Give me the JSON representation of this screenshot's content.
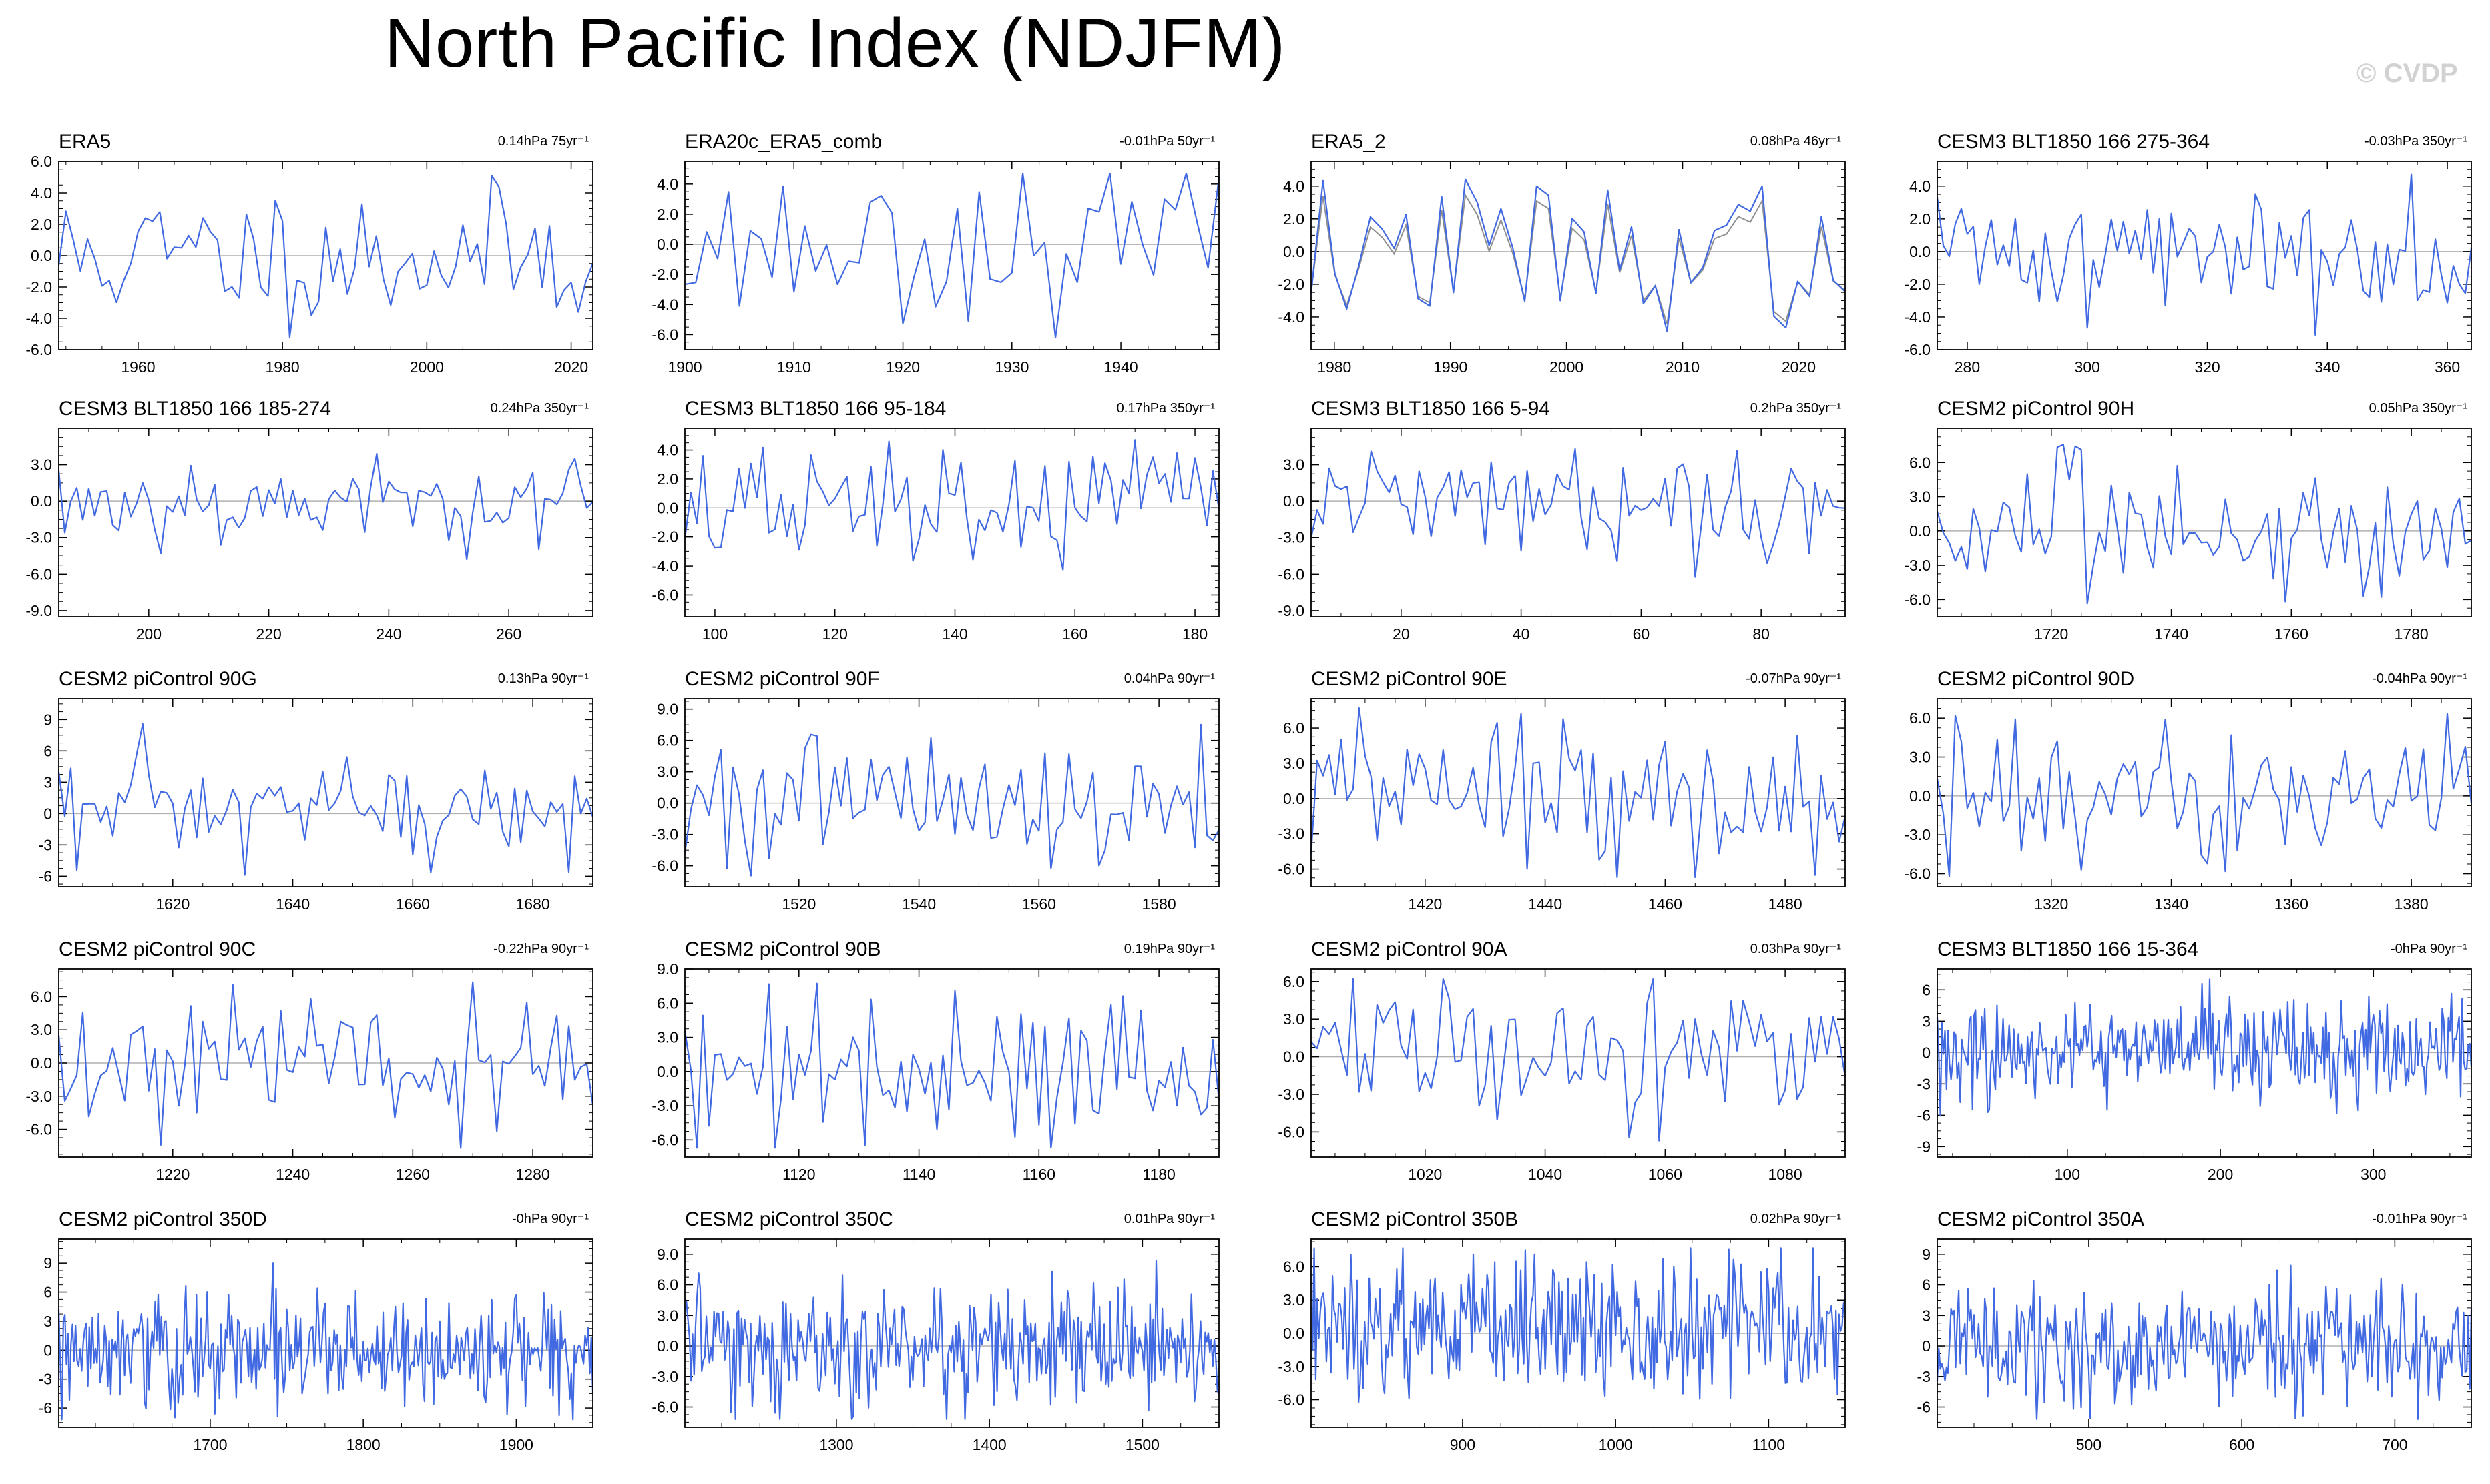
{
  "title": "North Pacific Index (NDJFM)",
  "watermark": "© CVDP",
  "colors": {
    "series_primary": "#4169e1",
    "series_secondary": "#909090",
    "zero_line": "#b0b0b0",
    "axis": "#000000"
  },
  "chart_data": [
    {
      "type": "line",
      "panel_label": "ERA5",
      "trend_label": "0.14hPa 75yr⁻¹",
      "xlim": [
        1949,
        2023
      ],
      "xticks": [
        1960,
        1980,
        2000,
        2020
      ],
      "ylim": [
        -6.0,
        6.0
      ],
      "yticks": [
        -6.0,
        -4.0,
        -2.0,
        0.0,
        2.0,
        4.0,
        6.0
      ],
      "ytick_decimals": 1,
      "n": 75,
      "amp": 2.2,
      "seed": 11,
      "series": [
        {
          "values": []
        }
      ]
    },
    {
      "type": "line",
      "panel_label": "ERA20c_ERA5_comb",
      "trend_label": "-0.01hPa 50yr⁻¹",
      "xlim": [
        1900,
        1949
      ],
      "xticks": [
        1900,
        1910,
        1920,
        1930,
        1940
      ],
      "ylim": [
        -7.0,
        5.5
      ],
      "yticks": [
        -6.0,
        -4.0,
        -2.0,
        0.0,
        2.0,
        4.0
      ],
      "ytick_decimals": 1,
      "n": 50,
      "amp": 2.4,
      "seed": 23,
      "series": [
        {
          "values": []
        }
      ]
    },
    {
      "type": "line",
      "panel_label": "ERA5_2",
      "trend_label": "0.08hPa 46yr⁻¹",
      "xlim": [
        1978,
        2024
      ],
      "xticks": [
        1980,
        1990,
        2000,
        2010,
        2020
      ],
      "ylim": [
        -6.0,
        5.5
      ],
      "yticks": [
        -4.0,
        -2.0,
        0.0,
        2.0,
        4.0
      ],
      "ytick_decimals": 1,
      "n": 46,
      "amp": 2.3,
      "seed": 37,
      "secondary": true,
      "series": [
        {
          "values": []
        }
      ]
    },
    {
      "type": "line",
      "panel_label": "CESM3 BLT1850 166 275-364",
      "trend_label": "-0.03hPa 350yr⁻¹",
      "xlim": [
        275,
        364
      ],
      "xticks": [
        280,
        300,
        320,
        340,
        360
      ],
      "ylim": [
        -6.0,
        5.5
      ],
      "yticks": [
        -6.0,
        -4.0,
        -2.0,
        0.0,
        2.0,
        4.0
      ],
      "ytick_decimals": 1,
      "n": 90,
      "amp": 2.0,
      "seed": 41,
      "series": [
        {
          "values": []
        }
      ]
    },
    {
      "type": "line",
      "panel_label": "CESM3 BLT1850 166 185-274",
      "trend_label": "0.24hPa 350yr⁻¹",
      "xlim": [
        185,
        274
      ],
      "xticks": [
        200,
        220,
        240,
        260
      ],
      "ylim": [
        -9.5,
        6.0
      ],
      "yticks": [
        -9.0,
        -6.0,
        -3.0,
        0.0,
        3.0
      ],
      "ytick_decimals": 1,
      "n": 90,
      "amp": 1.8,
      "seed": 53,
      "series": [
        {
          "values": []
        }
      ]
    },
    {
      "type": "line",
      "panel_label": "CESM3 BLT1850 166 95-184",
      "trend_label": "0.17hPa 350yr⁻¹",
      "xlim": [
        95,
        184
      ],
      "xticks": [
        100,
        120,
        140,
        160,
        180
      ],
      "ylim": [
        -7.5,
        5.5
      ],
      "yticks": [
        -6.0,
        -4.0,
        -2.0,
        0.0,
        2.0,
        4.0
      ],
      "ytick_decimals": 1,
      "n": 90,
      "amp": 2.1,
      "seed": 67,
      "series": [
        {
          "values": []
        }
      ]
    },
    {
      "type": "line",
      "panel_label": "CESM3 BLT1850 166 5-94",
      "trend_label": "0.2hPa 350yr⁻¹",
      "xlim": [
        5,
        94
      ],
      "xticks": [
        20,
        40,
        60,
        80
      ],
      "ylim": [
        -9.5,
        6.0
      ],
      "yticks": [
        -9.0,
        -6.0,
        -3.0,
        0.0,
        3.0
      ],
      "ytick_decimals": 1,
      "n": 90,
      "amp": 2.0,
      "seed": 79,
      "series": [
        {
          "values": []
        }
      ]
    },
    {
      "type": "line",
      "panel_label": "CESM2 piControl 90H",
      "trend_label": "0.05hPa 350yr⁻¹",
      "xlim": [
        1701,
        1790
      ],
      "xticks": [
        1720,
        1740,
        1760,
        1780
      ],
      "ylim": [
        -7.5,
        9.0
      ],
      "yticks": [
        -6.0,
        -3.0,
        0.0,
        3.0,
        6.0
      ],
      "ytick_decimals": 1,
      "n": 90,
      "amp": 3.0,
      "seed": 83,
      "series": [
        {
          "values": []
        }
      ]
    },
    {
      "type": "line",
      "panel_label": "CESM2 piControl 90G",
      "trend_label": "0.13hPa 90yr⁻¹",
      "xlim": [
        1601,
        1690
      ],
      "xticks": [
        1620,
        1640,
        1660,
        1680
      ],
      "ylim": [
        -7.0,
        11.0
      ],
      "yticks": [
        -6,
        -3,
        0,
        3,
        6,
        9
      ],
      "ytick_decimals": 0,
      "n": 90,
      "amp": 2.8,
      "seed": 97,
      "series": [
        {
          "values": []
        }
      ]
    },
    {
      "type": "line",
      "panel_label": "CESM2 piControl 90F",
      "trend_label": "0.04hPa 90yr⁻¹",
      "xlim": [
        1501,
        1590
      ],
      "xticks": [
        1520,
        1540,
        1560,
        1580
      ],
      "ylim": [
        -8.0,
        10.0
      ],
      "yticks": [
        -6.0,
        -3.0,
        0.0,
        3.0,
        6.0,
        9.0
      ],
      "ytick_decimals": 1,
      "n": 90,
      "amp": 3.2,
      "seed": 101,
      "series": [
        {
          "values": []
        }
      ]
    },
    {
      "type": "line",
      "panel_label": "CESM2 piControl 90E",
      "trend_label": "-0.07hPa 90yr⁻¹",
      "xlim": [
        1401,
        1490
      ],
      "xticks": [
        1420,
        1440,
        1460,
        1480
      ],
      "ylim": [
        -7.5,
        8.5
      ],
      "yticks": [
        -6.0,
        -3.0,
        0.0,
        3.0,
        6.0
      ],
      "ytick_decimals": 1,
      "n": 90,
      "amp": 3.0,
      "seed": 113,
      "series": [
        {
          "values": []
        }
      ]
    },
    {
      "type": "line",
      "panel_label": "CESM2 piControl 90D",
      "trend_label": "-0.04hPa 90yr⁻¹",
      "xlim": [
        1301,
        1390
      ],
      "xticks": [
        1320,
        1340,
        1360,
        1380
      ],
      "ylim": [
        -7.0,
        7.5
      ],
      "yticks": [
        -6.0,
        -3.0,
        0.0,
        3.0,
        6.0
      ],
      "ytick_decimals": 1,
      "n": 90,
      "amp": 2.8,
      "seed": 127,
      "series": [
        {
          "values": []
        }
      ]
    },
    {
      "type": "line",
      "panel_label": "CESM2 piControl 90C",
      "trend_label": "-0.22hPa 90yr⁻¹",
      "xlim": [
        1201,
        1290
      ],
      "xticks": [
        1220,
        1240,
        1260,
        1280
      ],
      "ylim": [
        -8.5,
        8.5
      ],
      "yticks": [
        -6.0,
        -3.0,
        0.0,
        3.0,
        6.0
      ],
      "ytick_decimals": 1,
      "n": 90,
      "amp": 3.0,
      "seed": 131,
      "series": [
        {
          "values": []
        }
      ]
    },
    {
      "type": "line",
      "panel_label": "CESM2 piControl 90B",
      "trend_label": "0.19hPa 90yr⁻¹",
      "xlim": [
        1101,
        1190
      ],
      "xticks": [
        1120,
        1140,
        1160,
        1180
      ],
      "ylim": [
        -7.5,
        9.0
      ],
      "yticks": [
        -6.0,
        -3.0,
        0.0,
        3.0,
        6.0,
        9.0
      ],
      "ytick_decimals": 1,
      "n": 90,
      "amp": 3.0,
      "seed": 139,
      "series": [
        {
          "values": []
        }
      ]
    },
    {
      "type": "line",
      "panel_label": "CESM2 piControl 90A",
      "trend_label": "0.03hPa 90yr⁻¹",
      "xlim": [
        1001,
        1090
      ],
      "xticks": [
        1020,
        1040,
        1060,
        1080
      ],
      "ylim": [
        -8.0,
        7.0
      ],
      "yticks": [
        -6.0,
        -3.0,
        0.0,
        3.0,
        6.0
      ],
      "ytick_decimals": 1,
      "n": 90,
      "amp": 2.8,
      "seed": 149,
      "series": [
        {
          "values": []
        }
      ]
    },
    {
      "type": "line",
      "panel_label": "CESM3 BLT1850 166 15-364",
      "trend_label": "-0hPa 90yr⁻¹",
      "xlim": [
        15,
        364
      ],
      "xticks": [
        100,
        200,
        300
      ],
      "ylim": [
        -10.0,
        8.0
      ],
      "yticks": [
        -9,
        -6,
        -3,
        0,
        3,
        6
      ],
      "ytick_decimals": 0,
      "n": 350,
      "amp": 2.2,
      "seed": 151,
      "series": [
        {
          "values": []
        }
      ]
    },
    {
      "type": "line",
      "panel_label": "CESM2 piControl 350D",
      "trend_label": "-0hPa 90yr⁻¹",
      "xlim": [
        1601,
        1950
      ],
      "xticks": [
        1700,
        1800,
        1900
      ],
      "ylim": [
        -8.0,
        11.5
      ],
      "yticks": [
        -6,
        -3,
        0,
        3,
        6,
        9
      ],
      "ytick_decimals": 0,
      "n": 350,
      "amp": 3.0,
      "seed": 163,
      "series": [
        {
          "values": []
        }
      ]
    },
    {
      "type": "line",
      "panel_label": "CESM2 piControl 350C",
      "trend_label": "0.01hPa 90yr⁻¹",
      "xlim": [
        1201,
        1550
      ],
      "xticks": [
        1300,
        1400,
        1500
      ],
      "ylim": [
        -8.0,
        10.5
      ],
      "yticks": [
        -6.0,
        -3.0,
        0.0,
        3.0,
        6.0,
        9.0
      ],
      "ytick_decimals": 1,
      "n": 350,
      "amp": 3.0,
      "seed": 173,
      "series": [
        {
          "values": []
        }
      ]
    },
    {
      "type": "line",
      "panel_label": "CESM2 piControl 350B",
      "trend_label": "0.02hPa 90yr⁻¹",
      "xlim": [
        801,
        1150
      ],
      "xticks": [
        900,
        1000,
        1100
      ],
      "ylim": [
        -8.5,
        8.5
      ],
      "yticks": [
        -6.0,
        -3.0,
        0.0,
        3.0,
        6.0
      ],
      "ytick_decimals": 1,
      "n": 350,
      "amp": 3.0,
      "seed": 181,
      "series": [
        {
          "values": []
        }
      ]
    },
    {
      "type": "line",
      "panel_label": "CESM2 piControl 350A",
      "trend_label": "-0.01hPa 90yr⁻¹",
      "xlim": [
        401,
        750
      ],
      "xticks": [
        500,
        600,
        700
      ],
      "ylim": [
        -8.0,
        10.5
      ],
      "yticks": [
        -6,
        -3,
        0,
        3,
        6,
        9
      ],
      "ytick_decimals": 0,
      "n": 350,
      "amp": 2.8,
      "seed": 191,
      "series": [
        {
          "values": []
        }
      ]
    }
  ]
}
